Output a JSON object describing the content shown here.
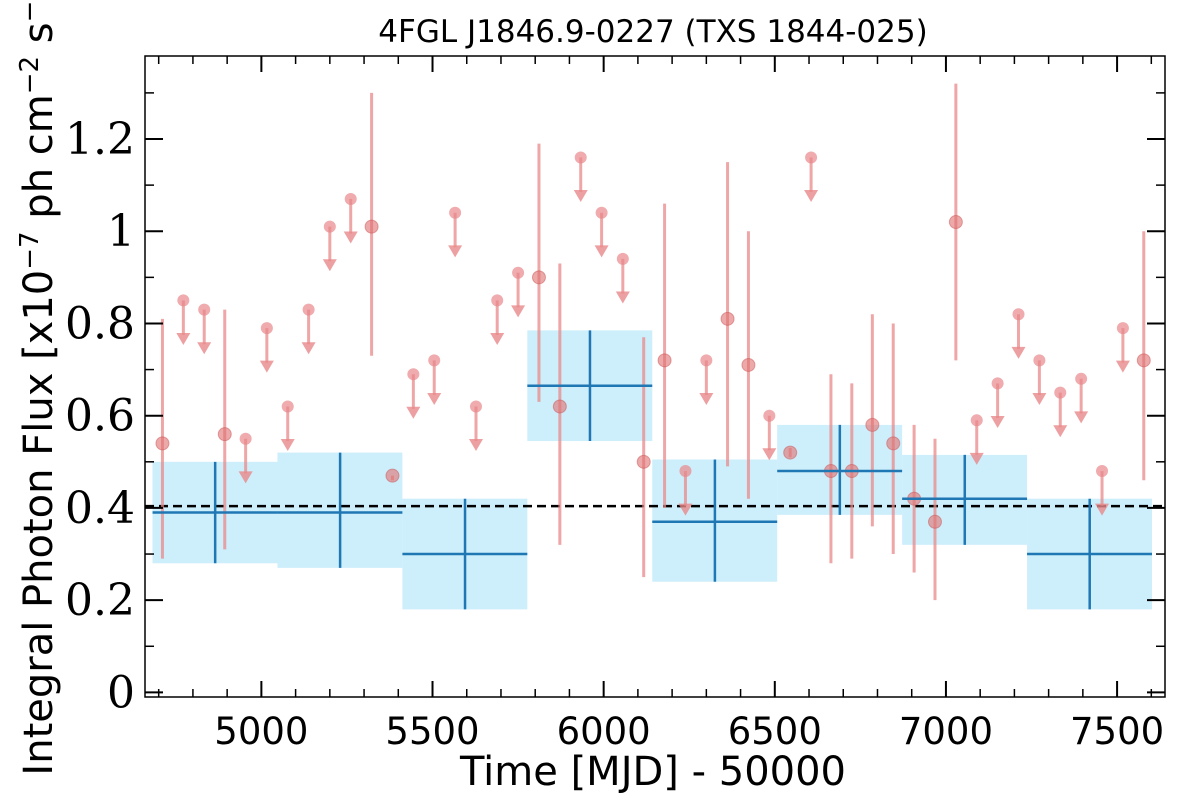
{
  "chart_data": {
    "type": "scatter",
    "title": "4FGL J1846.9-0227 (TXS 1844-025)",
    "xlabel": "Time [MJD] - 50000",
    "ylabel": "Integral Photon Flux [x10",
    "ylabel_exp1": "−7",
    "ylabel_mid": " ph cm",
    "ylabel_exp2": "−2",
    "ylabel_mid2": " s",
    "ylabel_exp3": "−1",
    "ylabel_end": "]",
    "xlim": [
      4660,
      7640
    ],
    "ylim": [
      -0.01,
      1.38
    ],
    "x_ticks": [
      5000,
      5500,
      6000,
      6500,
      7000,
      7500
    ],
    "x_tick_labels": [
      "5000",
      "5500",
      "6000",
      "6500",
      "7000",
      "7500"
    ],
    "y_ticks": [
      0,
      0.2,
      0.4,
      0.6,
      0.8,
      1,
      1.2
    ],
    "y_tick_labels": [
      "0",
      "0.2",
      "0.4",
      "0.6",
      "0.8",
      "1",
      "1.2"
    ],
    "mean_flux": 0.404,
    "colors": {
      "monthly": "#e8888a",
      "monthly_marker": "#e07070",
      "yearly_line": "#1f77b4",
      "yearly_band": "#cdeefb",
      "mean_line": "#000000"
    },
    "series": [
      {
        "kind": "monthly-detections",
        "points": [
          {
            "x": 4711,
            "y": 0.54,
            "lo": 0.29,
            "hi": 0.81
          },
          {
            "x": 4893,
            "y": 0.56,
            "lo": 0.31,
            "hi": 0.83
          },
          {
            "x": 5322,
            "y": 1.01,
            "lo": 0.73,
            "hi": 1.3
          },
          {
            "x": 5383,
            "y": 0.47,
            "lo": 0.46,
            "hi": 0.47
          },
          {
            "x": 5811,
            "y": 0.9,
            "lo": 0.63,
            "hi": 1.19
          },
          {
            "x": 5872,
            "y": 0.62,
            "lo": 0.32,
            "hi": 0.93
          },
          {
            "x": 6117,
            "y": 0.5,
            "lo": 0.25,
            "hi": 0.77
          },
          {
            "x": 6178,
            "y": 0.72,
            "lo": 0.4,
            "hi": 1.06
          },
          {
            "x": 6362,
            "y": 0.81,
            "lo": 0.49,
            "hi": 1.15
          },
          {
            "x": 6423,
            "y": 0.71,
            "lo": 0.42,
            "hi": 1.0
          },
          {
            "x": 6545,
            "y": 0.52,
            "lo": 0.51,
            "hi": 0.53
          },
          {
            "x": 6664,
            "y": 0.48,
            "lo": 0.28,
            "hi": 0.69
          },
          {
            "x": 6725,
            "y": 0.48,
            "lo": 0.29,
            "hi": 0.67
          },
          {
            "x": 6785,
            "y": 0.58,
            "lo": 0.36,
            "hi": 0.82
          },
          {
            "x": 6846,
            "y": 0.54,
            "lo": 0.3,
            "hi": 0.8
          },
          {
            "x": 6907,
            "y": 0.42,
            "lo": 0.26,
            "hi": 0.58
          },
          {
            "x": 6968,
            "y": 0.37,
            "lo": 0.2,
            "hi": 0.55
          },
          {
            "x": 7029,
            "y": 1.02,
            "lo": 0.72,
            "hi": 1.32
          },
          {
            "x": 7578,
            "y": 0.72,
            "lo": 0.46,
            "hi": 1.0
          }
        ]
      },
      {
        "kind": "monthly-upper-limits",
        "points": [
          {
            "x": 4772,
            "y": 0.85
          },
          {
            "x": 4833,
            "y": 0.83
          },
          {
            "x": 4954,
            "y": 0.55
          },
          {
            "x": 5016,
            "y": 0.79
          },
          {
            "x": 5077,
            "y": 0.62
          },
          {
            "x": 5138,
            "y": 0.83
          },
          {
            "x": 5200,
            "y": 1.01
          },
          {
            "x": 5261,
            "y": 1.07
          },
          {
            "x": 5444,
            "y": 0.69
          },
          {
            "x": 5505,
            "y": 0.72
          },
          {
            "x": 5566,
            "y": 1.04
          },
          {
            "x": 5627,
            "y": 0.62
          },
          {
            "x": 5689,
            "y": 0.85
          },
          {
            "x": 5750,
            "y": 0.91
          },
          {
            "x": 5933,
            "y": 1.16
          },
          {
            "x": 5994,
            "y": 1.04
          },
          {
            "x": 6056,
            "y": 0.94
          },
          {
            "x": 6239,
            "y": 0.48
          },
          {
            "x": 6300,
            "y": 0.72
          },
          {
            "x": 6484,
            "y": 0.6
          },
          {
            "x": 6606,
            "y": 1.16
          },
          {
            "x": 7090,
            "y": 0.59
          },
          {
            "x": 7151,
            "y": 0.67
          },
          {
            "x": 7212,
            "y": 0.82
          },
          {
            "x": 7273,
            "y": 0.72
          },
          {
            "x": 7334,
            "y": 0.65
          },
          {
            "x": 7395,
            "y": 0.68
          },
          {
            "x": 7456,
            "y": 0.48
          },
          {
            "x": 7517,
            "y": 0.79
          }
        ]
      },
      {
        "kind": "yearly-bins",
        "points": [
          {
            "x0": 4682,
            "x1": 5047,
            "xc": 4865,
            "y": 0.39,
            "lo": 0.28,
            "hi": 0.5
          },
          {
            "x0": 5047,
            "x1": 5412,
            "xc": 5230,
            "y": 0.39,
            "lo": 0.27,
            "hi": 0.52
          },
          {
            "x0": 5412,
            "x1": 5777,
            "xc": 5595,
            "y": 0.3,
            "lo": 0.18,
            "hi": 0.42
          },
          {
            "x0": 5777,
            "x1": 6142,
            "xc": 5960,
            "y": 0.665,
            "lo": 0.545,
            "hi": 0.785
          },
          {
            "x0": 6142,
            "x1": 6507,
            "xc": 6325,
            "y": 0.37,
            "lo": 0.24,
            "hi": 0.505
          },
          {
            "x0": 6507,
            "x1": 6872,
            "xc": 6690,
            "y": 0.48,
            "lo": 0.385,
            "hi": 0.58
          },
          {
            "x0": 6872,
            "x1": 7237,
            "xc": 7055,
            "y": 0.42,
            "lo": 0.32,
            "hi": 0.515
          },
          {
            "x0": 7237,
            "x1": 7602,
            "xc": 7420,
            "y": 0.3,
            "lo": 0.18,
            "hi": 0.42
          }
        ]
      }
    ]
  }
}
